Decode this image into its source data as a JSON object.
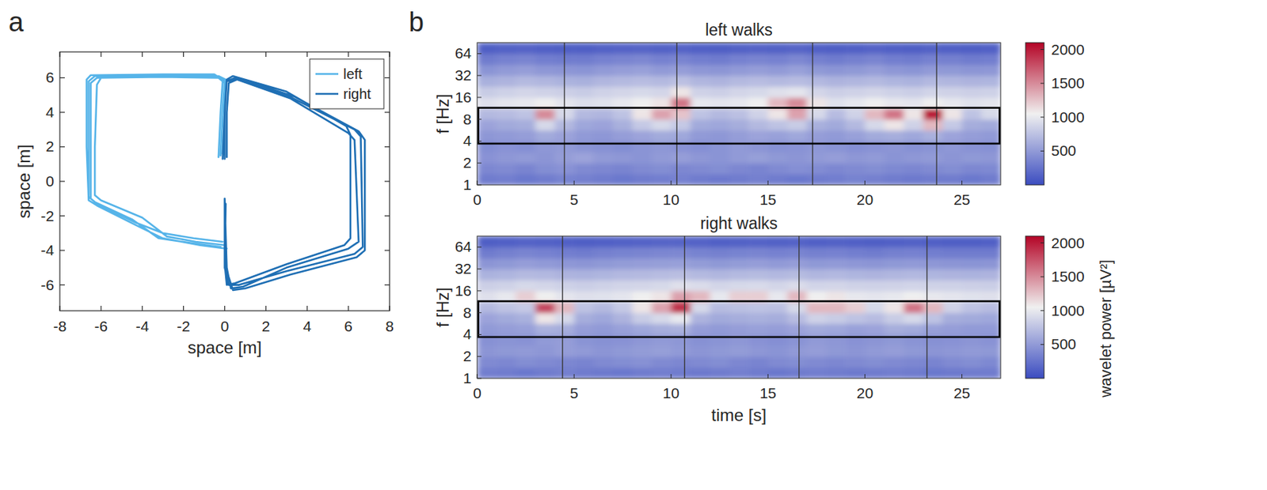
{
  "chart_data": [
    {
      "type": "line",
      "panel": "a",
      "x_label": "space [m]",
      "y_label": "space [m]",
      "xlim": [
        -8,
        8
      ],
      "xticks": [
        -8,
        -6,
        -4,
        -2,
        0,
        2,
        4,
        6,
        8
      ],
      "ylim": [
        -7.5,
        7.5
      ],
      "yticks": [
        -6,
        -4,
        -2,
        0,
        2,
        4,
        6
      ],
      "legend": "upper right",
      "series": [
        {
          "name": "left",
          "color": "#56b4e9",
          "x": [
            -0.3,
            -0.2,
            -0.1,
            -0.4,
            -3,
            -6.3,
            -6.6,
            -6.6,
            -6.6,
            -6.3,
            -4.5,
            -3.2,
            -1.5,
            -0.2,
            null,
            -0.2,
            -0.1,
            0,
            -0.3,
            -3,
            -6.2,
            -6.5,
            -6.5,
            -6.5,
            -6.2,
            -4.3,
            -3,
            -1.5,
            -0.1,
            null,
            -0.1,
            0,
            0.05,
            -0.3,
            -3,
            -6.0,
            -6.2,
            -6.3,
            -6.3,
            -6.0,
            -4,
            -2.8,
            -1.4,
            0,
            null,
            -0.2,
            -0.1,
            0,
            -0.5,
            -3,
            -6.5,
            -6.7,
            -6.7,
            -6.6,
            -6.2,
            -4.2,
            -3,
            -1.2,
            0.1
          ],
          "y": [
            1.4,
            4,
            5.8,
            6.1,
            6.15,
            6.1,
            5.8,
            2,
            -0.9,
            -1.2,
            -2.2,
            -3.3,
            -3.6,
            -3.8,
            null,
            1.5,
            4,
            5.7,
            6.0,
            6.05,
            6.0,
            5.7,
            2,
            -1.0,
            -1.3,
            -2.4,
            -3.0,
            -3.3,
            -3.5,
            null,
            1.6,
            4,
            5.9,
            6.1,
            6.1,
            6.0,
            5.6,
            2,
            -0.8,
            -1.1,
            -2.1,
            -3.2,
            -3.5,
            -3.7,
            null,
            1.5,
            4,
            5.8,
            6.2,
            6.2,
            6.15,
            5.9,
            2,
            -1.1,
            -1.4,
            -2.6,
            -3.3,
            -3.7,
            -3.9
          ]
        },
        {
          "name": "right",
          "color": "#1f6fb4",
          "x": [
            0,
            0,
            0.1,
            0.5,
            3,
            6.3,
            6.6,
            6.7,
            6.3,
            3,
            0.7,
            0.2,
            0,
            0,
            null,
            0.1,
            0.1,
            0.2,
            0.6,
            3.2,
            6.0,
            6.3,
            6.5,
            6.0,
            3,
            0.9,
            0.3,
            0.1,
            0,
            null,
            -0.1,
            0,
            0.1,
            0.4,
            3,
            5.9,
            6.1,
            6.1,
            5.8,
            3,
            0.5,
            0.1,
            0,
            0.05,
            null,
            0,
            0,
            0.1,
            0.7,
            3.4,
            6.5,
            6.8,
            6.8,
            6.4,
            3.2,
            1,
            0.4,
            0.1,
            0
          ],
          "y": [
            1.3,
            4,
            5.8,
            6.0,
            5.0,
            3.0,
            2.6,
            -3.8,
            -4.2,
            -5.2,
            -6.0,
            -6.0,
            -5.0,
            -1.0,
            null,
            1.4,
            4,
            5.7,
            5.9,
            4.8,
            2.8,
            2.4,
            -3.5,
            -3.9,
            -5.0,
            -6.1,
            -6.2,
            -5.0,
            -1.2,
            null,
            1.3,
            4,
            5.9,
            6.1,
            5.2,
            3.2,
            2.7,
            -3.3,
            -3.7,
            -4.8,
            -5.9,
            -6.0,
            -4.8,
            -1.3,
            null,
            1.5,
            4,
            5.8,
            5.95,
            4.9,
            2.9,
            2.4,
            -4.0,
            -4.4,
            -5.4,
            -6.2,
            -6.3,
            -5.2,
            -1.0
          ]
        }
      ]
    },
    {
      "type": "heatmap",
      "panel": "b",
      "title": "left walks",
      "y_label": "f [Hz]",
      "xlim": [
        0,
        27
      ],
      "xticks": [
        0,
        5,
        10,
        15,
        20,
        25
      ],
      "ylim": [
        1,
        90.5
      ],
      "yticks": [
        1,
        2,
        4,
        8,
        16,
        32,
        64
      ],
      "log": "y",
      "x_edges": [
        0,
        1,
        2,
        3,
        4,
        5,
        6,
        7,
        8,
        9,
        10,
        11,
        12,
        13,
        14,
        15,
        16,
        17,
        18,
        19,
        20,
        21,
        22,
        23,
        24,
        25,
        26,
        27
      ],
      "y_edges": [
        1,
        1.41,
        2,
        2.83,
        4,
        5.66,
        8,
        11.3,
        16,
        22.6,
        32,
        45.3,
        64,
        90.5
      ],
      "cells": [
        [
          300,
          320,
          280,
          300,
          350,
          330,
          300,
          280,
          300,
          320,
          340,
          300,
          290,
          310,
          330,
          300,
          280,
          300,
          320,
          350,
          330,
          300,
          290,
          310,
          300,
          280,
          300
        ],
        [
          380,
          400,
          360,
          420,
          450,
          400,
          380,
          360,
          400,
          420,
          380,
          400,
          420,
          380,
          360,
          400,
          430,
          410,
          380,
          400,
          420,
          390,
          370,
          400,
          420,
          380,
          390
        ],
        [
          450,
          480,
          500,
          470,
          520,
          560,
          500,
          480,
          460,
          500,
          520,
          480,
          460,
          500,
          530,
          490,
          470,
          500,
          520,
          480,
          500,
          460,
          480,
          500,
          470,
          490,
          480
        ],
        [
          420,
          450,
          430,
          480,
          500,
          460,
          440,
          420,
          460,
          480,
          450,
          430,
          460,
          500,
          470,
          440,
          450,
          480,
          460,
          430,
          450,
          470,
          440,
          460,
          480,
          450,
          440
        ],
        [
          480,
          500,
          520,
          600,
          560,
          500,
          480,
          520,
          560,
          600,
          580,
          500,
          480,
          520,
          560,
          540,
          580,
          520,
          500,
          540,
          600,
          620,
          580,
          640,
          560,
          520,
          500
        ],
        [
          560,
          600,
          620,
          900,
          700,
          580,
          560,
          640,
          800,
          900,
          800,
          600,
          580,
          620,
          700,
          760,
          820,
          640,
          600,
          700,
          900,
          1100,
          860,
          1300,
          800,
          620,
          600
        ],
        [
          700,
          720,
          760,
          1500,
          900,
          700,
          680,
          760,
          1100,
          1400,
          1250,
          760,
          700,
          740,
          860,
          1100,
          1400,
          900,
          720,
          860,
          1300,
          1600,
          1100,
          2000,
          1100,
          760,
          900
        ],
        [
          950,
          980,
          1000,
          1050,
          980,
          940,
          960,
          1000,
          1050,
          1100,
          1600,
          1000,
          980,
          1000,
          1050,
          1300,
          1500,
          1100,
          960,
          1000,
          1050,
          1000,
          980,
          1050,
          1000,
          960,
          980
        ],
        [
          820,
          850,
          880,
          860,
          840,
          820,
          860,
          880,
          900,
          880,
          1100,
          860,
          840,
          880,
          900,
          950,
          980,
          880,
          840,
          860,
          880,
          850,
          830,
          870,
          860,
          840,
          850
        ],
        [
          640,
          660,
          700,
          680,
          650,
          640,
          680,
          700,
          720,
          700,
          740,
          680,
          660,
          700,
          720,
          700,
          720,
          690,
          660,
          680,
          700,
          670,
          650,
          690,
          680,
          660,
          670
        ],
        [
          460,
          500,
          520,
          480,
          470,
          460,
          500,
          520,
          540,
          500,
          520,
          480,
          470,
          500,
          520,
          500,
          540,
          490,
          470,
          490,
          520,
          480,
          460,
          500,
          490,
          470,
          480
        ],
        [
          300,
          340,
          360,
          320,
          310,
          300,
          340,
          360,
          380,
          340,
          360,
          320,
          310,
          340,
          360,
          340,
          380,
          330,
          310,
          330,
          360,
          320,
          300,
          340,
          330,
          310,
          320
        ],
        [
          120,
          140,
          150,
          130,
          120,
          120,
          140,
          150,
          160,
          140,
          150,
          130,
          120,
          140,
          150,
          140,
          160,
          130,
          120,
          130,
          150,
          130,
          120,
          140,
          130,
          120,
          130
        ]
      ],
      "steps": [
        4.5,
        10.3,
        17.3,
        23.7
      ],
      "band": [
        3.7,
        11.5
      ],
      "colorbar": {
        "range": [
          0,
          2100
        ],
        "ticks": [
          500,
          1000,
          1500,
          2000
        ],
        "colors": [
          "#3b4cc0",
          "#f0f0f0",
          "#b40426"
        ]
      }
    },
    {
      "type": "heatmap",
      "title": "right walks",
      "x_label": "time [s]",
      "y_label": "f [Hz]",
      "xlim": [
        0,
        27
      ],
      "xticks": [
        0,
        5,
        10,
        15,
        20,
        25
      ],
      "ylim": [
        1,
        90.5
      ],
      "yticks": [
        1,
        2,
        4,
        8,
        16,
        32,
        64
      ],
      "log": "y",
      "x_edges": [
        0,
        1,
        2,
        3,
        4,
        5,
        6,
        7,
        8,
        9,
        10,
        11,
        12,
        13,
        14,
        15,
        16,
        17,
        18,
        19,
        20,
        21,
        22,
        23,
        24,
        25,
        26,
        27
      ],
      "y_edges": [
        1,
        1.41,
        2,
        2.83,
        4,
        5.66,
        8,
        11.3,
        16,
        22.6,
        32,
        45.3,
        64,
        90.5
      ],
      "cells": [
        [
          320,
          300,
          280,
          310,
          330,
          300,
          290,
          280,
          310,
          320,
          300,
          290,
          310,
          330,
          300,
          280,
          300,
          320,
          310,
          290,
          300,
          320,
          300,
          280,
          290,
          310,
          300
        ],
        [
          400,
          380,
          420,
          400,
          380,
          360,
          400,
          420,
          440,
          400,
          380,
          400,
          420,
          380,
          360,
          400,
          420,
          400,
          380,
          400,
          420,
          400,
          380,
          360,
          400,
          420,
          390
        ],
        [
          470,
          490,
          500,
          480,
          520,
          500,
          470,
          490,
          510,
          530,
          500,
          470,
          490,
          510,
          480,
          460,
          500,
          520,
          490,
          470,
          500,
          520,
          490,
          470,
          480,
          500,
          490
        ],
        [
          440,
          460,
          450,
          500,
          520,
          460,
          440,
          450,
          480,
          500,
          480,
          440,
          460,
          480,
          450,
          430,
          460,
          500,
          480,
          450,
          470,
          490,
          460,
          440,
          450,
          470,
          450
        ],
        [
          500,
          520,
          540,
          640,
          620,
          520,
          500,
          540,
          580,
          620,
          640,
          520,
          500,
          520,
          540,
          520,
          560,
          600,
          580,
          540,
          560,
          620,
          600,
          540,
          520,
          500,
          500
        ],
        [
          560,
          600,
          640,
          1100,
          900,
          620,
          580,
          660,
          820,
          900,
          1000,
          660,
          600,
          620,
          640,
          620,
          720,
          860,
          820,
          760,
          720,
          820,
          900,
          760,
          620,
          600,
          580
        ],
        [
          700,
          760,
          800,
          1800,
          1300,
          760,
          700,
          800,
          1100,
          1400,
          1900,
          900,
          720,
          740,
          760,
          740,
          900,
          1300,
          1300,
          1200,
          900,
          1100,
          1600,
          1300,
          860,
          760,
          720
        ],
        [
          950,
          1000,
          1200,
          1050,
          980,
          950,
          960,
          980,
          1050,
          1100,
          1400,
          1300,
          1000,
          1200,
          1200,
          1000,
          1300,
          1050,
          1100,
          1000,
          980,
          1000,
          1050,
          1000,
          980,
          960,
          950
        ],
        [
          840,
          860,
          900,
          880,
          850,
          830,
          850,
          870,
          880,
          900,
          950,
          920,
          880,
          900,
          910,
          880,
          920,
          870,
          880,
          860,
          850,
          860,
          870,
          860,
          850,
          840,
          830
        ],
        [
          650,
          670,
          700,
          690,
          660,
          650,
          670,
          690,
          700,
          720,
          730,
          700,
          680,
          700,
          710,
          690,
          710,
          680,
          690,
          670,
          660,
          680,
          690,
          670,
          660,
          650,
          660
        ],
        [
          470,
          490,
          520,
          500,
          480,
          470,
          490,
          510,
          520,
          530,
          540,
          510,
          490,
          510,
          520,
          500,
          520,
          490,
          500,
          480,
          470,
          490,
          500,
          480,
          470,
          460,
          470
        ],
        [
          310,
          330,
          360,
          340,
          320,
          310,
          330,
          350,
          360,
          370,
          380,
          350,
          330,
          350,
          360,
          340,
          360,
          330,
          340,
          320,
          310,
          330,
          340,
          320,
          310,
          300,
          310
        ],
        [
          120,
          130,
          150,
          140,
          130,
          120,
          130,
          140,
          150,
          160,
          160,
          150,
          130,
          140,
          150,
          140,
          150,
          130,
          140,
          130,
          120,
          130,
          140,
          130,
          120,
          120,
          130
        ]
      ],
      "steps": [
        4.4,
        10.7,
        16.6,
        23.2
      ],
      "band": [
        3.7,
        11.5
      ],
      "colorbar": {
        "range": [
          0,
          2100
        ],
        "ticks": [
          500,
          1000,
          1500,
          2000
        ],
        "colors": [
          "#3b4cc0",
          "#f0f0f0",
          "#b40426"
        ],
        "label": "wavelet power [µV²]"
      }
    }
  ]
}
